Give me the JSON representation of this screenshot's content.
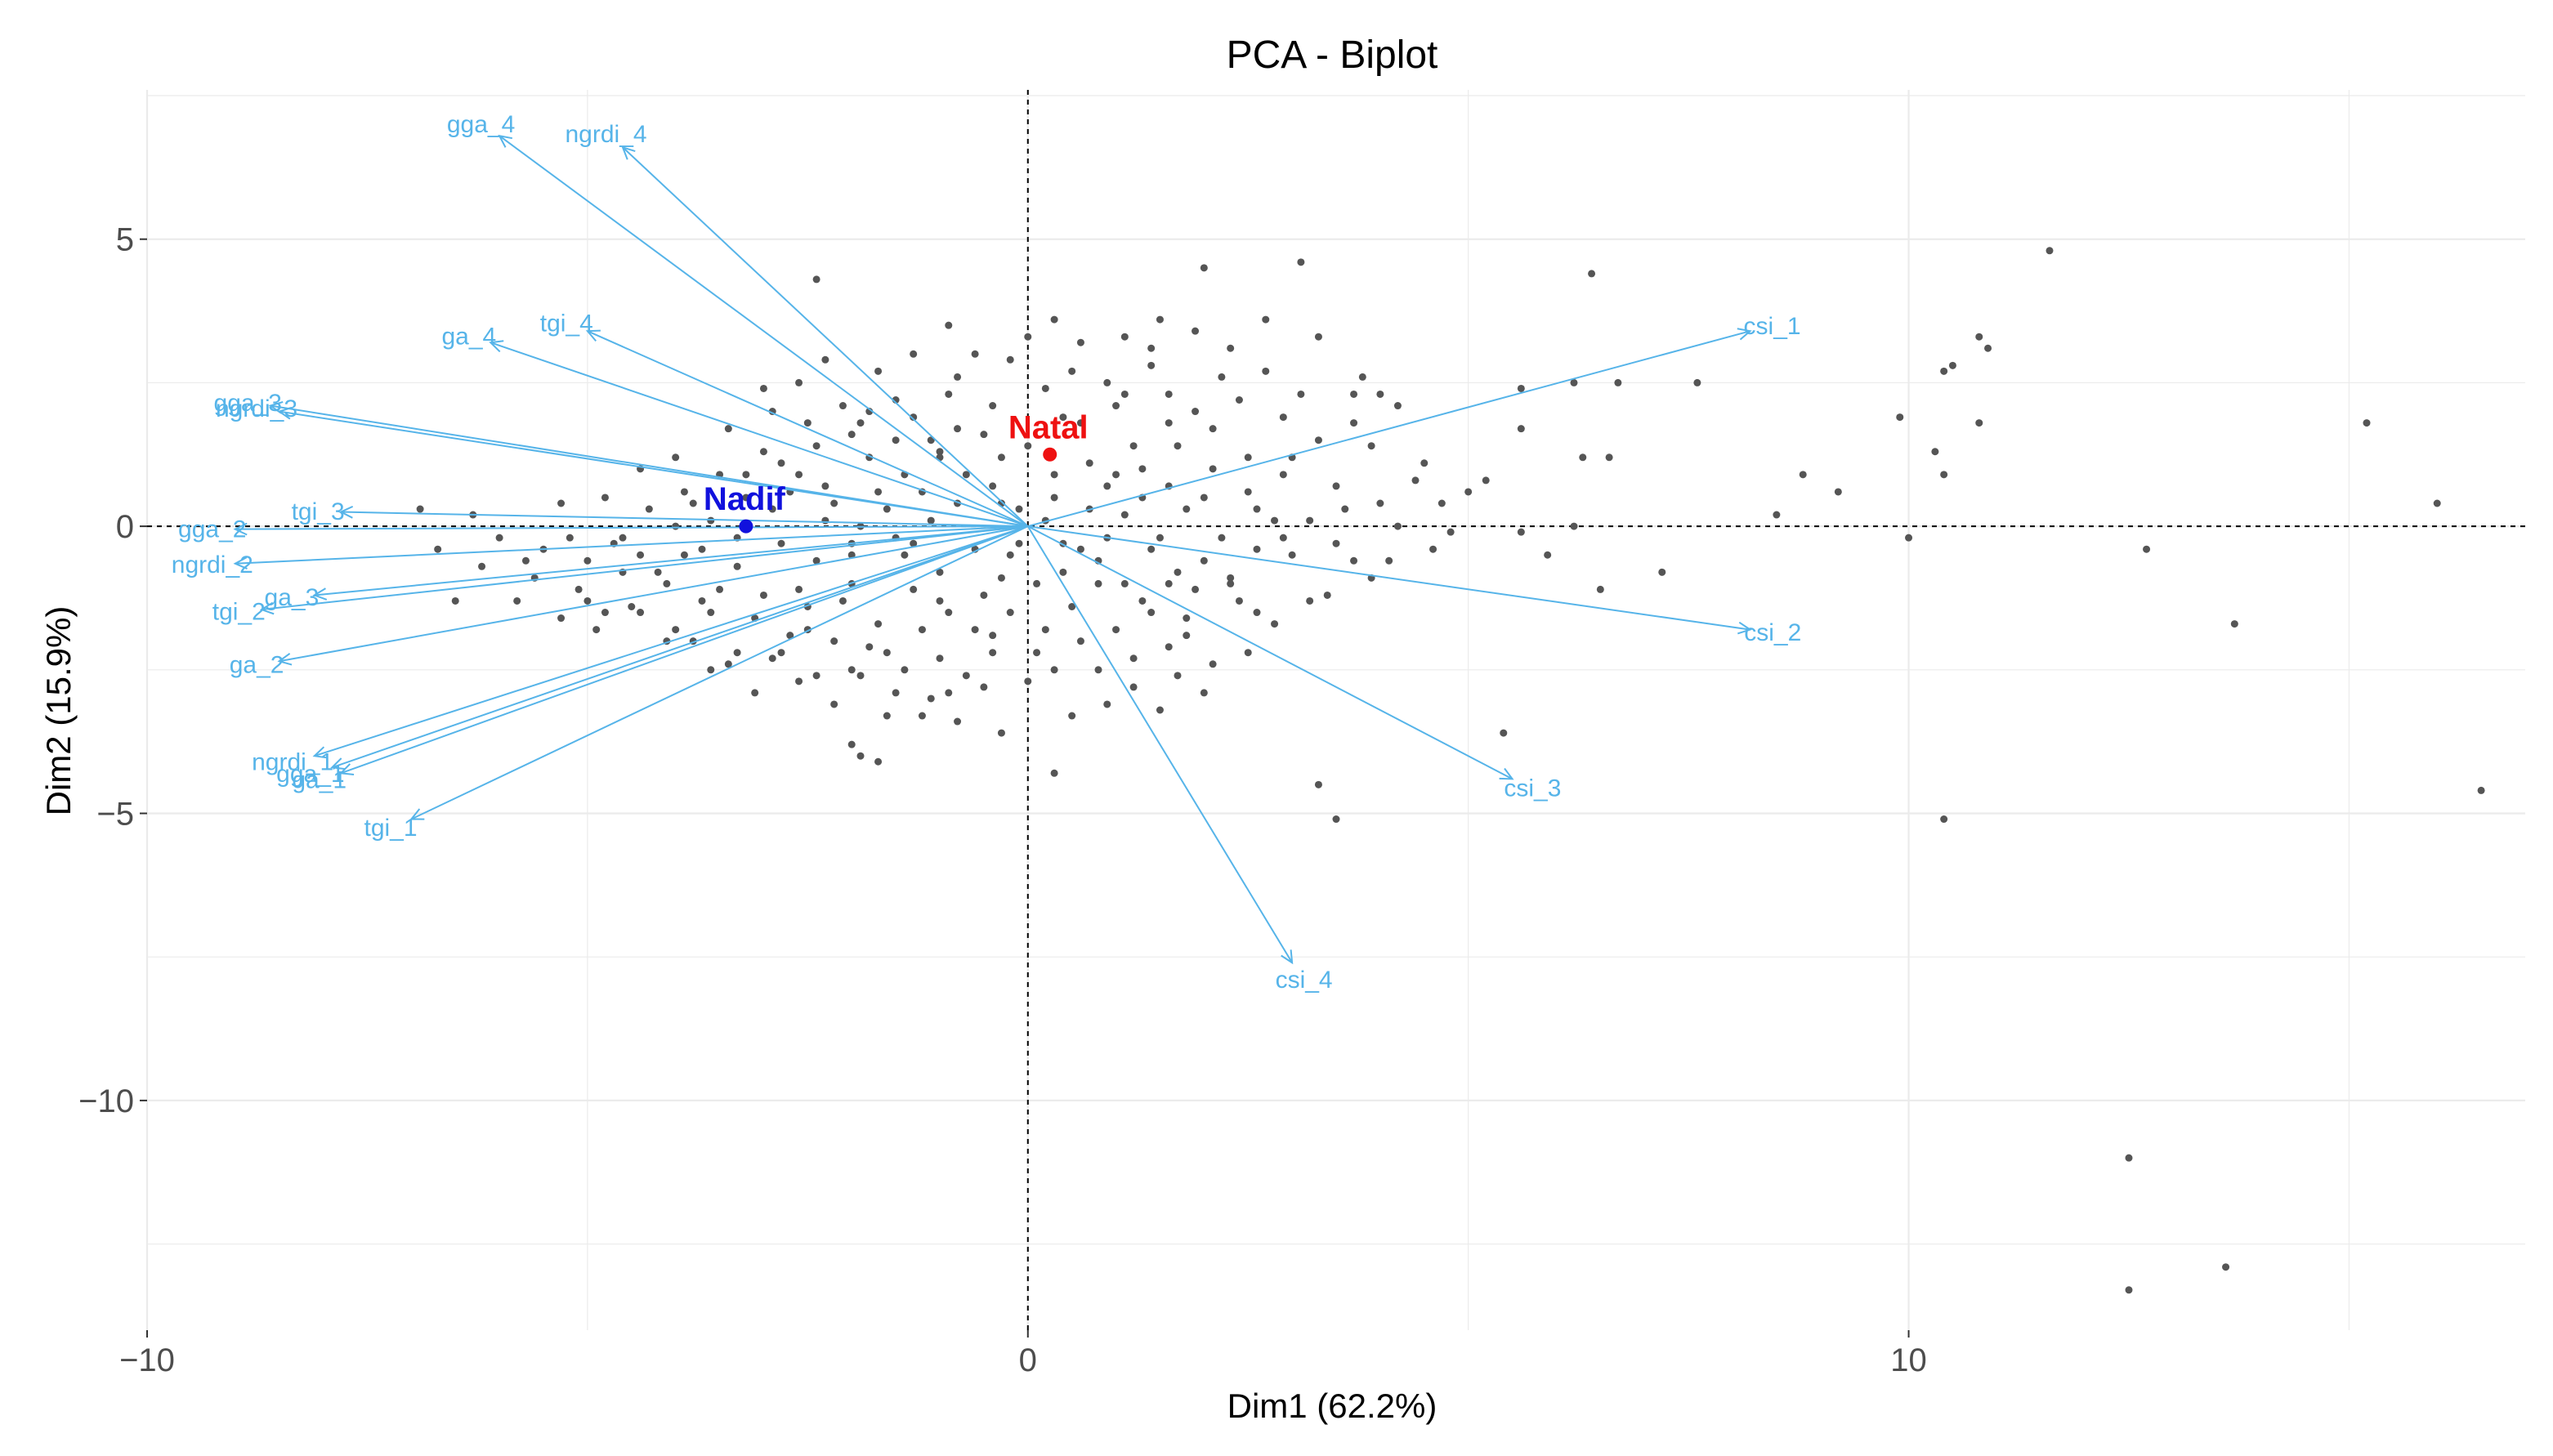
{
  "chart_data": {
    "type": "scatter",
    "title": "PCA - Biplot",
    "xlabel": "Dim1 (62.2%)",
    "ylabel": "Dim2 (15.9%)",
    "xlim": [
      -10.0,
      17.0
    ],
    "ylim": [
      -14.0,
      7.6
    ],
    "x_ticks": [
      -10,
      0,
      10
    ],
    "y_ticks": [
      5,
      0,
      -5,
      -10
    ],
    "x_tick_labels": [
      "−10",
      "0",
      "10"
    ],
    "y_tick_labels": [
      "5",
      "0",
      "−5",
      "−10"
    ],
    "grid": true,
    "reference_lines": {
      "x": 0,
      "y": 0,
      "style": "dashed"
    },
    "colors": {
      "variables": "#56b4e9",
      "points": "#555555",
      "natal": "#ee1111",
      "nadif": "#1111dd",
      "grid": "#ebebeb"
    },
    "variables": [
      {
        "name": "gga_4",
        "x": -6.0,
        "y": 6.8
      },
      {
        "name": "ngrdi_4",
        "x": -4.6,
        "y": 6.6
      },
      {
        "name": "tgi_4",
        "x": -5.0,
        "y": 3.4
      },
      {
        "name": "ga_4",
        "x": -6.1,
        "y": 3.2
      },
      {
        "name": "gga_3",
        "x": -8.6,
        "y": 2.1
      },
      {
        "name": "ngrdi_3",
        "x": -8.5,
        "y": 2.0
      },
      {
        "name": "tgi_3",
        "x": -7.8,
        "y": 0.25
      },
      {
        "name": "gga_2",
        "x": -9.0,
        "y": -0.05
      },
      {
        "name": "ngrdi_2",
        "x": -9.0,
        "y": -0.65
      },
      {
        "name": "ga_3",
        "x": -8.1,
        "y": -1.2
      },
      {
        "name": "tgi_2",
        "x": -8.7,
        "y": -1.45
      },
      {
        "name": "ga_2",
        "x": -8.5,
        "y": -2.35
      },
      {
        "name": "ngrdi_1",
        "x": -8.1,
        "y": -4.0
      },
      {
        "name": "gga_1",
        "x": -7.9,
        "y": -4.2
      },
      {
        "name": "ga_1",
        "x": -7.8,
        "y": -4.3
      },
      {
        "name": "tgi_1",
        "x": -7.0,
        "y": -5.1
      },
      {
        "name": "csi_1",
        "x": 8.2,
        "y": 3.4
      },
      {
        "name": "csi_2",
        "x": 8.2,
        "y": -1.8
      },
      {
        "name": "csi_3",
        "x": 5.5,
        "y": -4.4
      },
      {
        "name": "csi_4",
        "x": 3.0,
        "y": -7.6
      }
    ],
    "individuals": [
      {
        "name": "Natal",
        "x": 0.25,
        "y": 1.25
      },
      {
        "name": "Nadif",
        "x": -3.2,
        "y": 0.0
      }
    ],
    "points": [
      [
        11.6,
        4.8
      ],
      [
        15.2,
        1.8
      ],
      [
        16.0,
        0.4
      ],
      [
        16.5,
        -4.6
      ],
      [
        12.5,
        -11.0
      ],
      [
        12.5,
        -13.3
      ],
      [
        13.6,
        -12.9
      ],
      [
        13.7,
        -1.7
      ],
      [
        12.7,
        -0.4
      ],
      [
        10.4,
        -5.1
      ],
      [
        10.0,
        -0.2
      ],
      [
        9.9,
        1.9
      ],
      [
        10.3,
        1.3
      ],
      [
        10.4,
        0.9
      ],
      [
        10.4,
        2.7
      ],
      [
        10.5,
        2.8
      ],
      [
        10.8,
        3.3
      ],
      [
        10.9,
        3.1
      ],
      [
        10.8,
        1.8
      ],
      [
        9.2,
        0.6
      ],
      [
        8.8,
        0.9
      ],
      [
        8.5,
        0.2
      ],
      [
        7.6,
        2.5
      ],
      [
        6.7,
        2.5
      ],
      [
        5.6,
        2.4
      ],
      [
        6.2,
        2.5
      ],
      [
        5.6,
        1.7
      ],
      [
        6.3,
        1.2
      ],
      [
        6.6,
        1.2
      ],
      [
        6.2,
        0.0
      ],
      [
        5.6,
        -0.1
      ],
      [
        6.5,
        -1.1
      ],
      [
        7.2,
        -0.8
      ],
      [
        6.4,
        4.4
      ],
      [
        3.1,
        4.6
      ],
      [
        2.0,
        4.5
      ],
      [
        5.4,
        -3.6
      ],
      [
        3.3,
        -4.5
      ],
      [
        3.5,
        -5.1
      ],
      [
        5.0,
        0.6
      ],
      [
        4.5,
        1.1
      ],
      [
        4.2,
        2.1
      ],
      [
        4.0,
        2.3
      ],
      [
        3.8,
        2.6
      ],
      [
        3.7,
        2.3
      ],
      [
        -2.4,
        4.3
      ],
      [
        -1.0,
        1.2
      ],
      [
        -1.3,
        1.9
      ],
      [
        -1.5,
        2.2
      ],
      [
        -2.0,
        1.6
      ],
      [
        -2.5,
        1.8
      ],
      [
        -2.3,
        0.7
      ],
      [
        -3.2,
        0.5
      ],
      [
        -4.0,
        1.2
      ],
      [
        -4.4,
        1.0
      ],
      [
        -4.1,
        -1.0
      ],
      [
        -4.6,
        -0.8
      ],
      [
        -5.1,
        -1.1
      ],
      [
        -5.3,
        -1.6
      ],
      [
        -5.0,
        -1.3
      ],
      [
        -6.0,
        -0.2
      ],
      [
        -6.3,
        0.2
      ],
      [
        -6.9,
        0.3
      ],
      [
        -4.0,
        -1.8
      ],
      [
        -3.8,
        -2.0
      ],
      [
        -3.6,
        -1.5
      ],
      [
        -3.3,
        -2.2
      ],
      [
        -2.9,
        -2.3
      ],
      [
        -2.7,
        -1.9
      ],
      [
        -2.4,
        -2.6
      ],
      [
        -2.0,
        -2.5
      ],
      [
        -1.8,
        -2.1
      ],
      [
        -1.4,
        -2.5
      ],
      [
        -1.1,
        -3.0
      ],
      [
        -0.5,
        -2.8
      ],
      [
        -0.3,
        -3.6
      ],
      [
        0.3,
        -4.3
      ],
      [
        -1.6,
        -3.3
      ],
      [
        -2.0,
        -3.8
      ],
      [
        -1.7,
        -4.1
      ],
      [
        -1.2,
        -3.3
      ],
      [
        -0.8,
        -3.4
      ],
      [
        -0.4,
        -2.2
      ],
      [
        0.3,
        -2.5
      ],
      [
        0.8,
        -2.5
      ],
      [
        1.2,
        -2.3
      ],
      [
        1.6,
        -2.1
      ],
      [
        2.1,
        -2.4
      ],
      [
        1.8,
        -1.6
      ],
      [
        1.6,
        -1.0
      ],
      [
        2.3,
        -0.9
      ],
      [
        2.6,
        -0.4
      ],
      [
        2.9,
        -0.2
      ],
      [
        3.2,
        0.1
      ],
      [
        3.6,
        0.3
      ],
      [
        4.2,
        0.0
      ],
      [
        4.7,
        0.4
      ],
      [
        4.6,
        -0.4
      ],
      [
        3.9,
        -0.9
      ],
      [
        3.4,
        -1.2
      ],
      [
        2.8,
        -1.7
      ],
      [
        2.4,
        -1.3
      ],
      [
        2.0,
        -0.6
      ],
      [
        1.5,
        -0.2
      ],
      [
        1.1,
        0.2
      ],
      [
        0.9,
        0.7
      ],
      [
        1.3,
        1.0
      ],
      [
        1.7,
        1.4
      ],
      [
        2.1,
        1.7
      ],
      [
        2.5,
        1.2
      ],
      [
        2.9,
        0.9
      ],
      [
        3.3,
        1.5
      ],
      [
        3.7,
        1.8
      ],
      [
        3.1,
        2.3
      ],
      [
        2.7,
        2.7
      ],
      [
        2.3,
        3.1
      ],
      [
        1.9,
        3.4
      ],
      [
        1.4,
        2.8
      ],
      [
        1.0,
        2.1
      ],
      [
        0.6,
        1.8
      ],
      [
        0.2,
        2.4
      ],
      [
        -0.2,
        2.9
      ],
      [
        -0.5,
        1.6
      ],
      [
        -0.9,
        2.3
      ],
      [
        -1.1,
        1.5
      ],
      [
        -1.4,
        0.9
      ],
      [
        -1.8,
        1.2
      ],
      [
        -2.2,
        0.4
      ],
      [
        -2.6,
        0.9
      ],
      [
        -3.0,
        1.3
      ],
      [
        -3.5,
        0.9
      ],
      [
        -3.8,
        0.4
      ],
      [
        -4.3,
        0.3
      ],
      [
        -4.6,
        -0.2
      ],
      [
        -5.0,
        -0.6
      ],
      [
        -5.5,
        -0.4
      ],
      [
        -6.2,
        -0.7
      ],
      [
        -5.8,
        -1.3
      ],
      [
        -4.9,
        -1.8
      ],
      [
        -4.5,
        -1.4
      ],
      [
        -4.1,
        -2.0
      ],
      [
        -3.6,
        -2.5
      ],
      [
        -3.1,
        -1.6
      ],
      [
        -2.6,
        -1.1
      ],
      [
        -2.1,
        -1.3
      ],
      [
        -1.7,
        -1.7
      ],
      [
        -1.3,
        -1.1
      ],
      [
        -0.9,
        -1.5
      ],
      [
        -0.5,
        -1.2
      ],
      [
        -0.2,
        -0.5
      ],
      [
        0.1,
        -1.0
      ],
      [
        0.5,
        -1.4
      ],
      [
        0.4,
        -0.3
      ],
      [
        0.8,
        -0.6
      ],
      [
        1.1,
        -1.0
      ],
      [
        1.4,
        -1.5
      ],
      [
        1.9,
        -1.1
      ],
      [
        2.2,
        -0.2
      ],
      [
        2.6,
        0.3
      ],
      [
        2.0,
        0.5
      ],
      [
        1.6,
        0.7
      ],
      [
        1.2,
        1.4
      ],
      [
        0.7,
        1.1
      ],
      [
        0.3,
        0.5
      ],
      [
        -0.1,
        0.3
      ],
      [
        -0.4,
        0.7
      ],
      [
        -0.8,
        0.4
      ],
      [
        -1.2,
        0.6
      ],
      [
        -1.6,
        0.3
      ],
      [
        -2.0,
        -0.3
      ],
      [
        -2.4,
        -0.6
      ],
      [
        -2.8,
        -0.3
      ],
      [
        -3.3,
        -0.7
      ],
      [
        -3.7,
        -0.4
      ],
      [
        -4.2,
        -0.8
      ],
      [
        -3.9,
        0.6
      ],
      [
        -3.4,
        1.7
      ],
      [
        -2.9,
        2.0
      ],
      [
        -2.6,
        2.5
      ],
      [
        -2.1,
        2.1
      ],
      [
        -1.7,
        2.7
      ],
      [
        -1.3,
        3.0
      ],
      [
        -0.8,
        2.6
      ],
      [
        0.0,
        3.3
      ],
      [
        0.6,
        3.2
      ],
      [
        1.1,
        3.3
      ],
      [
        1.5,
        3.6
      ],
      [
        2.7,
        3.6
      ],
      [
        3.3,
        3.3
      ],
      [
        0.5,
        2.7
      ],
      [
        -0.3,
        1.2
      ],
      [
        0.2,
        -1.8
      ],
      [
        0.6,
        -2.0
      ],
      [
        1.0,
        -1.8
      ],
      [
        0.0,
        -2.7
      ],
      [
        -0.6,
        -1.8
      ],
      [
        -1.0,
        -2.3
      ],
      [
        -1.5,
        -2.9
      ],
      [
        -2.2,
        -3.1
      ],
      [
        -2.6,
        -2.7
      ],
      [
        -3.1,
        -2.9
      ],
      [
        -3.4,
        -2.4
      ],
      [
        -1.9,
        -4.0
      ],
      [
        4.1,
        -0.6
      ],
      [
        4.4,
        0.8
      ],
      [
        5.2,
        0.8
      ],
      [
        3.9,
        1.4
      ],
      [
        1.8,
        0.3
      ],
      [
        1.4,
        -0.4
      ],
      [
        0.9,
        -0.2
      ],
      [
        -0.6,
        -0.4
      ],
      [
        -1.0,
        -0.8
      ],
      [
        -1.4,
        -0.5
      ],
      [
        -1.9,
        0.0
      ],
      [
        -2.3,
        0.1
      ],
      [
        -2.7,
        0.6
      ],
      [
        -3.6,
        0.1
      ],
      [
        -4.8,
        0.5
      ],
      [
        -5.3,
        0.4
      ],
      [
        -5.6,
        -0.9
      ],
      [
        -4.4,
        -1.5
      ],
      [
        -3.0,
        -1.2
      ],
      [
        -2.5,
        -1.8
      ],
      [
        -0.8,
        1.7
      ],
      [
        -0.4,
        2.1
      ],
      [
        0.4,
        -0.8
      ],
      [
        0.7,
        0.3
      ],
      [
        1.3,
        0.5
      ],
      [
        1.7,
        -0.8
      ],
      [
        2.3,
        -1.0
      ],
      [
        2.8,
        0.1
      ],
      [
        3.0,
        -0.5
      ],
      [
        3.5,
        -0.3
      ],
      [
        2.9,
        1.9
      ],
      [
        2.4,
        2.2
      ],
      [
        1.6,
        2.3
      ],
      [
        0.9,
        2.5
      ],
      [
        -0.6,
        3.0
      ],
      [
        -1.0,
        1.3
      ],
      [
        -1.5,
        1.5
      ],
      [
        -1.9,
        1.8
      ],
      [
        -2.4,
        1.4
      ],
      [
        -2.8,
        1.1
      ],
      [
        -3.2,
        0.9
      ],
      [
        -4.0,
        0.0
      ],
      [
        -4.7,
        -0.3
      ],
      [
        -5.2,
        -0.2
      ],
      [
        -3.5,
        -1.1
      ],
      [
        -2.0,
        -1.0
      ],
      [
        -1.2,
        -1.8
      ],
      [
        -0.7,
        -2.6
      ],
      [
        0.1,
        -2.2
      ],
      [
        1.2,
        -2.8
      ],
      [
        1.5,
        -3.2
      ],
      [
        2.0,
        -2.9
      ],
      [
        0.9,
        -3.1
      ],
      [
        -0.2,
        -1.5
      ],
      [
        0.3,
        0.9
      ],
      [
        -0.3,
        -0.9
      ],
      [
        0.6,
        -0.4
      ],
      [
        1.0,
        0.9
      ],
      [
        1.9,
        2.0
      ],
      [
        2.2,
        2.6
      ],
      [
        -0.7,
        0.9
      ],
      [
        -1.1,
        0.1
      ],
      [
        -1.5,
        -0.2
      ],
      [
        -2.0,
        -0.5
      ],
      [
        -2.9,
        0.3
      ],
      [
        -3.3,
        -0.2
      ],
      [
        -3.9,
        -0.5
      ],
      [
        -4.4,
        -0.5
      ],
      [
        -2.2,
        -2.0
      ],
      [
        -1.6,
        -2.2
      ],
      [
        -1.0,
        -1.3
      ],
      [
        0.8,
        -1.0
      ],
      [
        1.3,
        -1.3
      ],
      [
        1.8,
        -1.9
      ],
      [
        2.5,
        -2.2
      ],
      [
        3.2,
        -1.3
      ],
      [
        3.7,
        -0.6
      ],
      [
        4.0,
        0.4
      ],
      [
        3.5,
        0.7
      ],
      [
        3.0,
        1.2
      ],
      [
        2.5,
        0.6
      ],
      [
        2.1,
        1.0
      ],
      [
        1.6,
        1.8
      ],
      [
        1.1,
        2.3
      ],
      [
        0.4,
        1.9
      ],
      [
        0.0,
        1.4
      ],
      [
        -0.3,
        0.4
      ],
      [
        0.2,
        0.1
      ],
      [
        -0.1,
        -0.3
      ],
      [
        -1.3,
        -0.3
      ],
      [
        -1.7,
        0.6
      ],
      [
        -2.5,
        -1.4
      ],
      [
        -3.7,
        -1.3
      ],
      [
        -4.8,
        -1.5
      ],
      [
        -5.7,
        -0.6
      ],
      [
        -6.5,
        -1.3
      ],
      [
        -6.7,
        -0.4
      ],
      [
        -3.0,
        2.4
      ],
      [
        -2.3,
        2.9
      ],
      [
        -1.8,
        2.0
      ],
      [
        -0.9,
        3.5
      ],
      [
        0.3,
        3.6
      ],
      [
        1.4,
        3.1
      ],
      [
        4.8,
        -0.1
      ],
      [
        5.9,
        -0.5
      ],
      [
        2.6,
        -1.5
      ],
      [
        1.7,
        -2.6
      ],
      [
        0.5,
        -3.3
      ],
      [
        -0.9,
        -2.9
      ],
      [
        -1.9,
        -2.6
      ],
      [
        -2.8,
        -2.2
      ],
      [
        -0.4,
        -1.9
      ]
    ]
  }
}
